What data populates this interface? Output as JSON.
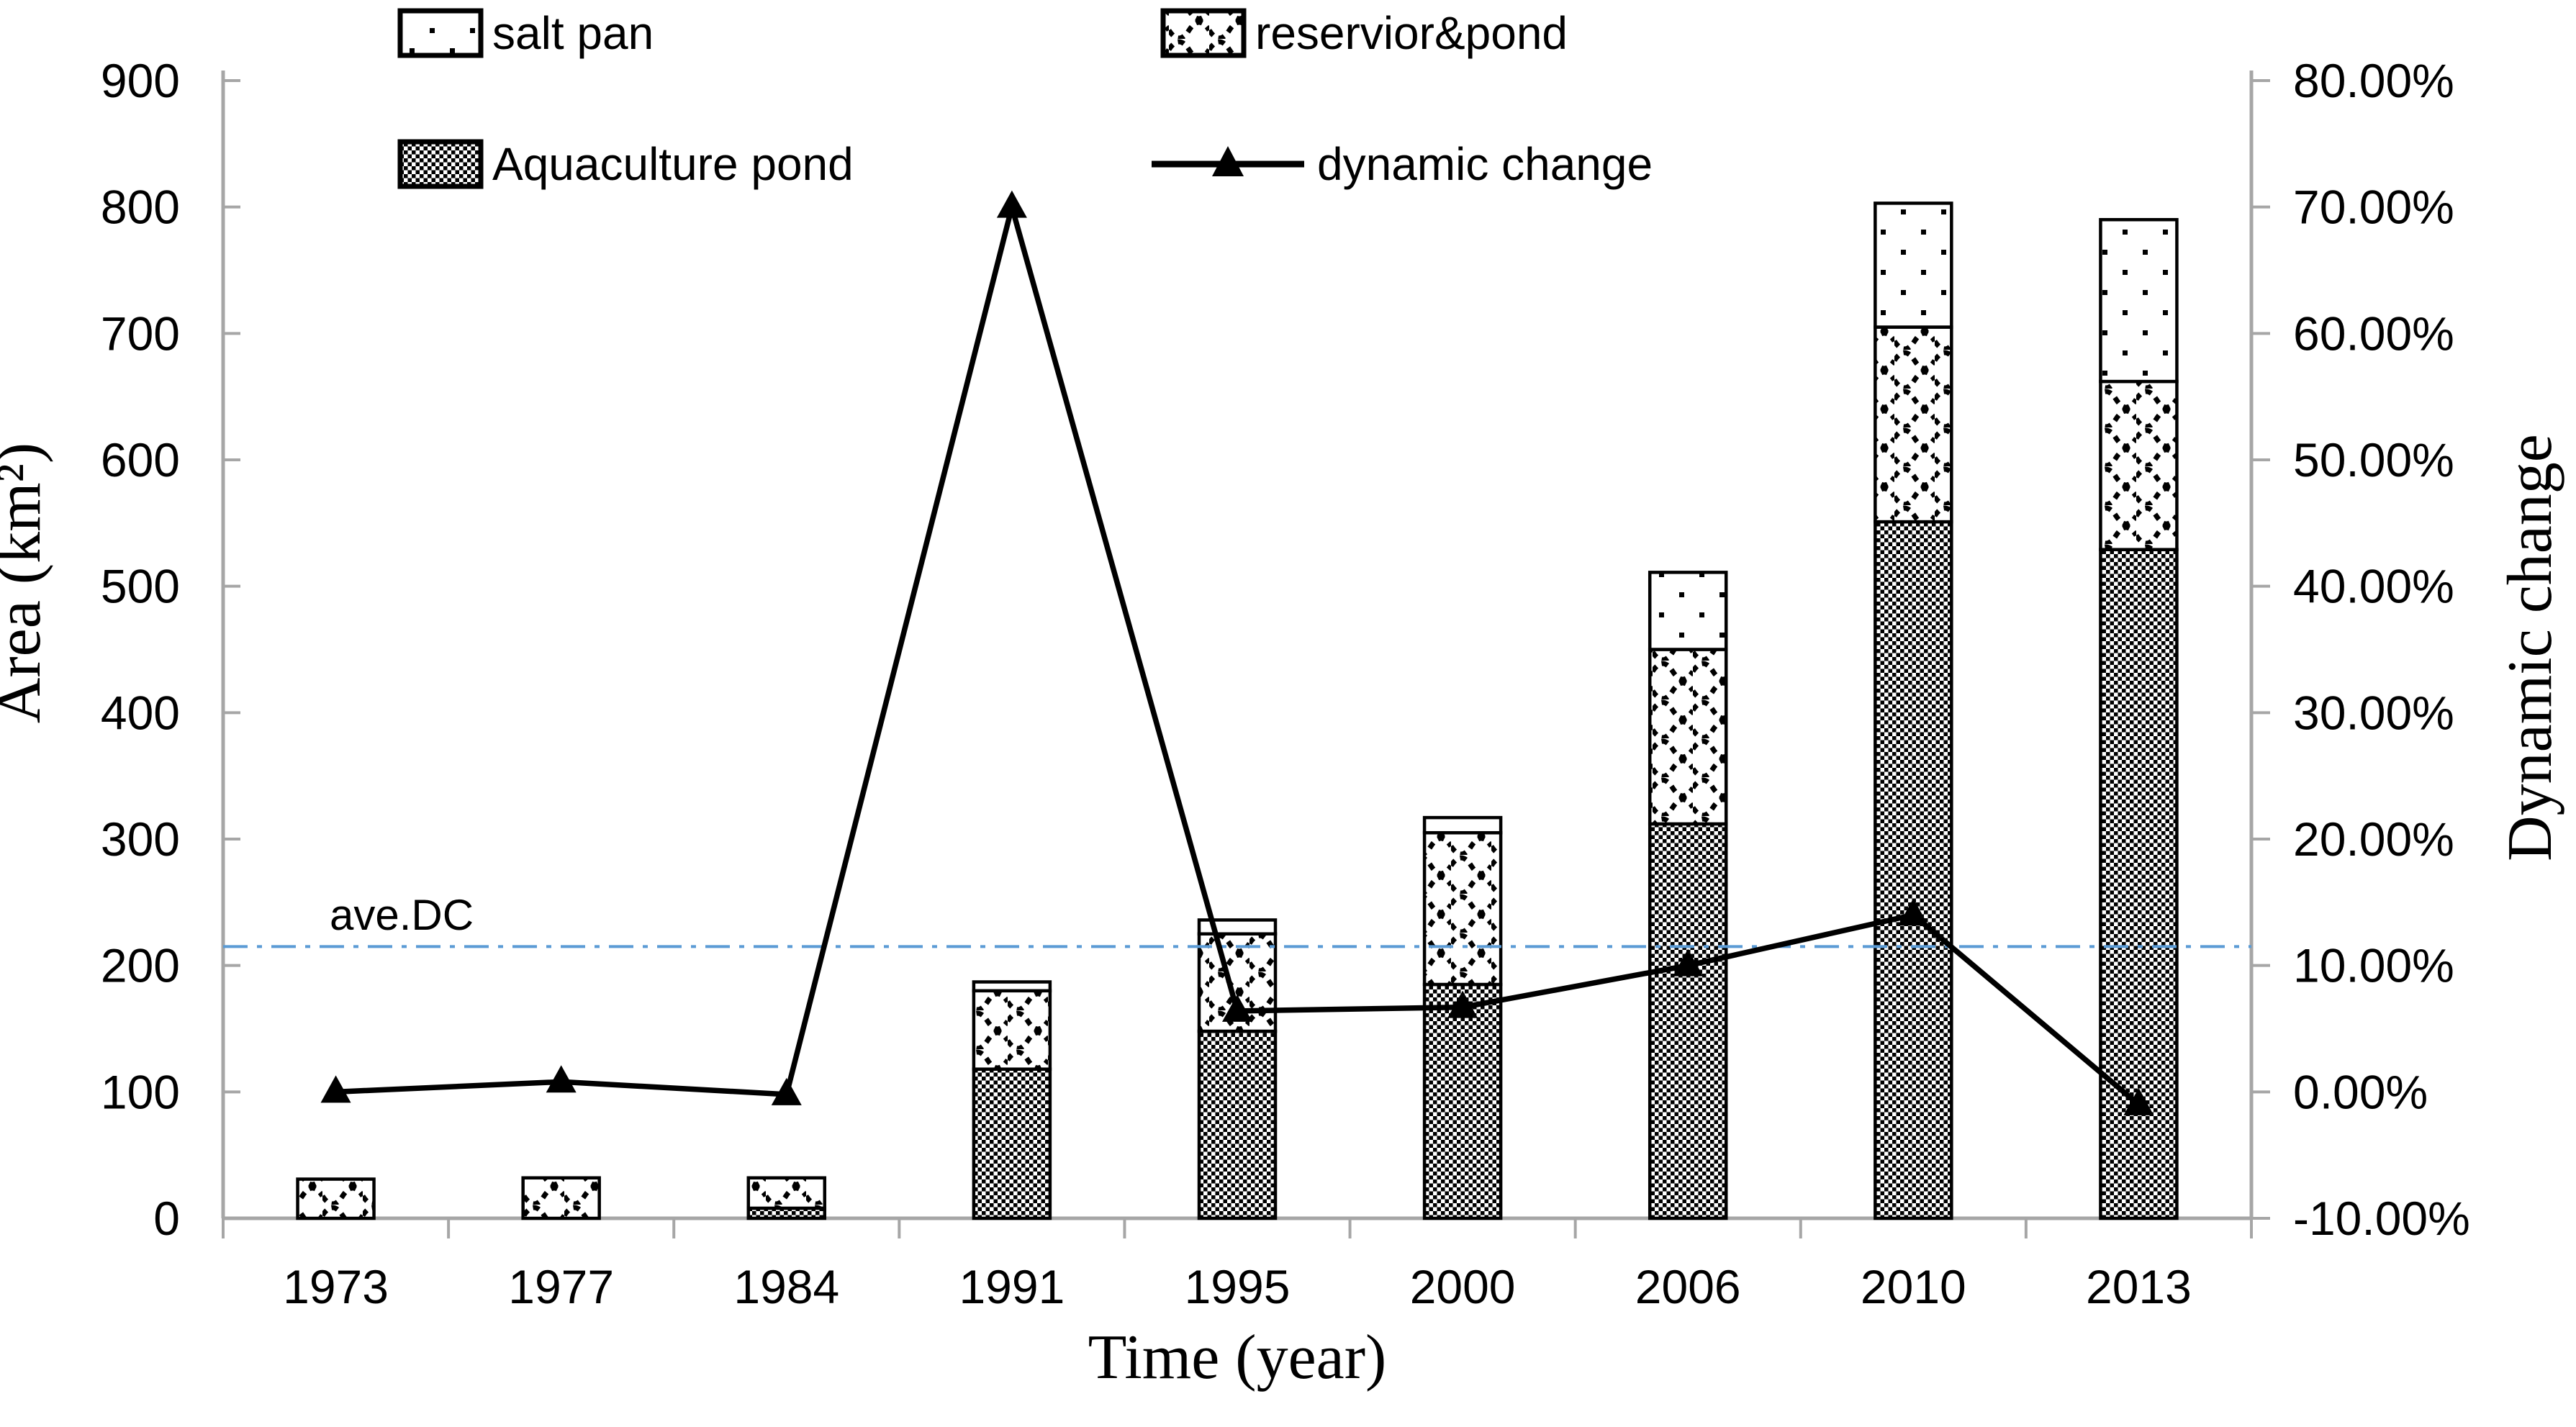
{
  "figure": {
    "annotation_ave_dc": "ave.DC"
  },
  "legend": {
    "salt_pan": "salt pan",
    "reservoir_pond": "reservior&pond",
    "aquaculture_pond": "Aquaculture pond",
    "dynamic_change": "dynamic change"
  },
  "chart_data": {
    "type": "combo-stacked-bar-line",
    "categories": [
      "1973",
      "1977",
      "1984",
      "1991",
      "1995",
      "2000",
      "2006",
      "2010",
      "2013"
    ],
    "series": [
      {
        "name": "Aquaculture pond",
        "pattern": "checker",
        "axis": "left",
        "values": [
          0,
          0,
          8,
          118,
          148,
          185,
          312,
          551,
          529
        ]
      },
      {
        "name": "reservior&pond",
        "pattern": "waves",
        "axis": "left",
        "values": [
          31,
          32,
          24,
          62,
          77,
          120,
          138,
          154,
          133
        ]
      },
      {
        "name": "salt pan",
        "pattern": "dots",
        "axis": "left",
        "values": [
          0,
          0,
          0,
          7,
          11,
          12,
          61,
          98,
          128
        ]
      }
    ],
    "stacked_totals": [
      31,
      32,
      32,
      187,
      236,
      317,
      511,
      803,
      790
    ],
    "line_series": {
      "name": "dynamic change",
      "axis": "right",
      "marker": "filled-triangle",
      "color": "#000000",
      "values_percent": [
        0.0,
        0.8,
        -0.2,
        70.0,
        6.4,
        6.7,
        10.0,
        14.0,
        -1.0
      ]
    },
    "average_line": {
      "label": "ave.DC",
      "value_percent": 11.5,
      "color": "#5B9BD5",
      "style": "dash-dot"
    },
    "left_axis": {
      "title": "Area (km²)",
      "min": 0,
      "max": 900,
      "step": 100,
      "tick_labels": [
        "0",
        "100",
        "200",
        "300",
        "400",
        "500",
        "600",
        "700",
        "800",
        "900"
      ]
    },
    "right_axis": {
      "title": "Dynamic change",
      "min": -10,
      "max": 80,
      "step": 10,
      "tick_labels": [
        "-10.00%",
        "0.00%",
        "10.00%",
        "20.00%",
        "30.00%",
        "40.00%",
        "50.00%",
        "60.00%",
        "70.00%",
        "80.00%"
      ]
    },
    "x_axis": {
      "title": "Time (year)"
    },
    "grid": false,
    "legend_position": "top",
    "axis_color": "#A6A6A6"
  }
}
